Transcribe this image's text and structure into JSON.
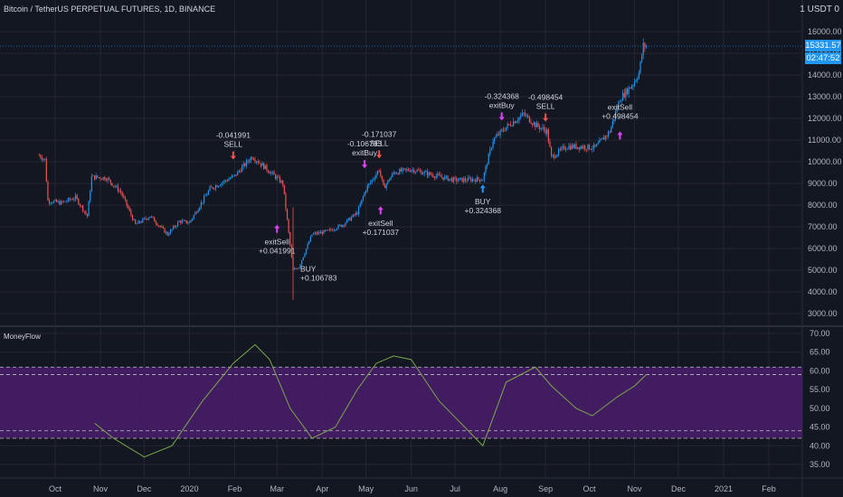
{
  "header": {
    "title": "Bitcoin / TetherUS PERPETUAL FUTURES, 1D, BINANCE",
    "currency": "1 USDT 0",
    "price_badge": "15331.57",
    "time_badge": "02:47:52"
  },
  "indicator": {
    "title": "MoneyFlow"
  },
  "chart_data": {
    "type": "candlestick",
    "price_axis": {
      "labels": [
        "16000.00",
        "15000.00",
        "14000.00",
        "13000.00",
        "12000.00",
        "11000.00",
        "10000.00",
        "9000.00",
        "8000.00",
        "7000.00",
        "6000.00",
        "5000.00",
        "4000.00",
        "3000.00"
      ],
      "ylim": [
        2500,
        16500
      ]
    },
    "indicator_axis": {
      "labels": [
        "70.00",
        "65.00",
        "60.00",
        "55.00",
        "50.00",
        "45.00",
        "40.00",
        "35.00"
      ],
      "ylim": [
        34,
        71
      ],
      "bands": [
        42,
        44,
        59,
        61
      ],
      "fill_range": [
        42,
        61
      ]
    },
    "time_axis": {
      "labels": [
        "Oct",
        "Nov",
        "Dec",
        "2020",
        "Feb",
        "Mar",
        "Apr",
        "May",
        "Jun",
        "Jul",
        "Aug",
        "Sep",
        "Oct",
        "Nov",
        "Dec",
        "2021",
        "Feb"
      ]
    },
    "price_trace": [
      {
        "t": "2019-09-20",
        "v": 10300
      },
      {
        "t": "2019-09-24",
        "v": 10100
      },
      {
        "t": "2019-09-26",
        "v": 8200
      },
      {
        "t": "2019-10-05",
        "v": 8100
      },
      {
        "t": "2019-10-15",
        "v": 8350
      },
      {
        "t": "2019-10-23",
        "v": 7500
      },
      {
        "t": "2019-10-26",
        "v": 9300
      },
      {
        "t": "2019-11-05",
        "v": 9250
      },
      {
        "t": "2019-11-15",
        "v": 8600
      },
      {
        "t": "2019-11-25",
        "v": 7100
      },
      {
        "t": "2019-12-05",
        "v": 7500
      },
      {
        "t": "2019-12-17",
        "v": 6650
      },
      {
        "t": "2019-12-25",
        "v": 7250
      },
      {
        "t": "2020-01-01",
        "v": 7200
      },
      {
        "t": "2020-01-15",
        "v": 8750
      },
      {
        "t": "2020-02-01",
        "v": 9350
      },
      {
        "t": "2020-02-13",
        "v": 10250
      },
      {
        "t": "2020-02-25",
        "v": 9550
      },
      {
        "t": "2020-03-05",
        "v": 9000
      },
      {
        "t": "2020-03-12",
        "v": 5000
      },
      {
        "t": "2020-03-16",
        "v": 5150
      },
      {
        "t": "2020-03-25",
        "v": 6650
      },
      {
        "t": "2020-04-05",
        "v": 6800
      },
      {
        "t": "2020-04-15",
        "v": 7100
      },
      {
        "t": "2020-04-25",
        "v": 7650
      },
      {
        "t": "2020-05-01",
        "v": 8750
      },
      {
        "t": "2020-05-10",
        "v": 9650
      },
      {
        "t": "2020-05-13",
        "v": 8800
      },
      {
        "t": "2020-05-20",
        "v": 9500
      },
      {
        "t": "2020-06-01",
        "v": 9650
      },
      {
        "t": "2020-06-15",
        "v": 9400
      },
      {
        "t": "2020-07-01",
        "v": 9150
      },
      {
        "t": "2020-07-20",
        "v": 9200
      },
      {
        "t": "2020-07-27",
        "v": 11000
      },
      {
        "t": "2020-08-05",
        "v": 11600
      },
      {
        "t": "2020-08-17",
        "v": 12200
      },
      {
        "t": "2020-08-25",
        "v": 11700
      },
      {
        "t": "2020-09-02",
        "v": 11400
      },
      {
        "t": "2020-09-05",
        "v": 10200
      },
      {
        "t": "2020-09-15",
        "v": 10700
      },
      {
        "t": "2020-09-25",
        "v": 10700
      },
      {
        "t": "2020-10-05",
        "v": 10650
      },
      {
        "t": "2020-10-15",
        "v": 11400
      },
      {
        "t": "2020-10-22",
        "v": 12900
      },
      {
        "t": "2020-10-31",
        "v": 13600
      },
      {
        "t": "2020-11-04",
        "v": 14100
      },
      {
        "t": "2020-11-07",
        "v": 15350
      },
      {
        "t": "2020-11-09",
        "v": 15331.57
      }
    ],
    "money_flow": [
      {
        "t": "2019-10-28",
        "v": 46
      },
      {
        "t": "2019-11-10",
        "v": 42
      },
      {
        "t": "2019-12-01",
        "v": 37
      },
      {
        "t": "2019-12-20",
        "v": 40
      },
      {
        "t": "2020-01-10",
        "v": 52
      },
      {
        "t": "2020-01-31",
        "v": 62
      },
      {
        "t": "2020-02-15",
        "v": 67
      },
      {
        "t": "2020-02-25",
        "v": 63
      },
      {
        "t": "2020-03-10",
        "v": 50
      },
      {
        "t": "2020-03-25",
        "v": 42
      },
      {
        "t": "2020-04-10",
        "v": 45
      },
      {
        "t": "2020-04-25",
        "v": 55
      },
      {
        "t": "2020-05-08",
        "v": 62
      },
      {
        "t": "2020-05-20",
        "v": 64
      },
      {
        "t": "2020-06-01",
        "v": 63
      },
      {
        "t": "2020-06-20",
        "v": 52
      },
      {
        "t": "2020-07-05",
        "v": 46
      },
      {
        "t": "2020-07-20",
        "v": 40
      },
      {
        "t": "2020-08-05",
        "v": 57
      },
      {
        "t": "2020-08-25",
        "v": 61
      },
      {
        "t": "2020-09-05",
        "v": 56
      },
      {
        "t": "2020-09-22",
        "v": 50
      },
      {
        "t": "2020-10-03",
        "v": 48
      },
      {
        "t": "2020-10-20",
        "v": 53
      },
      {
        "t": "2020-11-01",
        "v": 56
      },
      {
        "t": "2020-11-09",
        "v": 59
      }
    ],
    "signals": [
      {
        "t": "2020-01-31",
        "price": 10100,
        "dir": "down",
        "color": "#ef5350",
        "label": [
          "-0.041991",
          "SELL"
        ],
        "label_pos": "above"
      },
      {
        "t": "2020-03-01",
        "price": 7100,
        "dir": "up",
        "color": "#e040fb",
        "label": [
          "exitSell",
          "+0.041991"
        ],
        "label_pos": "below"
      },
      {
        "t": "2020-03-12",
        "price": 5100,
        "dir": "none",
        "color": "#e040fb",
        "label": [
          "BUY",
          "+0.106783"
        ],
        "label_pos": "right"
      },
      {
        "t": "2020-04-30",
        "price": 9700,
        "dir": "down",
        "color": "#e040fb",
        "label": [
          "-0.106783",
          "exitBuy"
        ],
        "label_pos": "above"
      },
      {
        "t": "2020-05-10",
        "price": 10150,
        "dir": "down",
        "color": "#ef5350",
        "label": [
          "-0.171037",
          "SELL"
        ],
        "label_pos": "above"
      },
      {
        "t": "2020-05-11",
        "price": 7950,
        "dir": "up",
        "color": "#e040fb",
        "label": [
          "exitSell",
          "+0.171037"
        ],
        "label_pos": "below"
      },
      {
        "t": "2020-07-20",
        "price": 8950,
        "dir": "up",
        "color": "#2196f3",
        "label": [
          "BUY",
          "+0.324368"
        ],
        "label_pos": "below"
      },
      {
        "t": "2020-08-02",
        "price": 11900,
        "dir": "down",
        "color": "#e040fb",
        "label": [
          "-0.324368",
          "exitBuy"
        ],
        "label_pos": "above"
      },
      {
        "t": "2020-09-01",
        "price": 11850,
        "dir": "down",
        "color": "#ef5350",
        "label": [
          "-0.498454",
          "SELL"
        ],
        "label_pos": "above"
      },
      {
        "t": "2020-10-22",
        "price": 11400,
        "dir": "up",
        "color": "#e040fb",
        "label": [
          "exitSell",
          "+0.498454"
        ],
        "label_pos": "above"
      }
    ],
    "colors": {
      "up": "#2196f3",
      "down": "#ef5350",
      "money_flow": "#7ca74a",
      "band_fill": "#4a1d6b",
      "band_line": "#c0c0c0",
      "grid": "#242733",
      "axis_text": "#b2b5be"
    }
  }
}
